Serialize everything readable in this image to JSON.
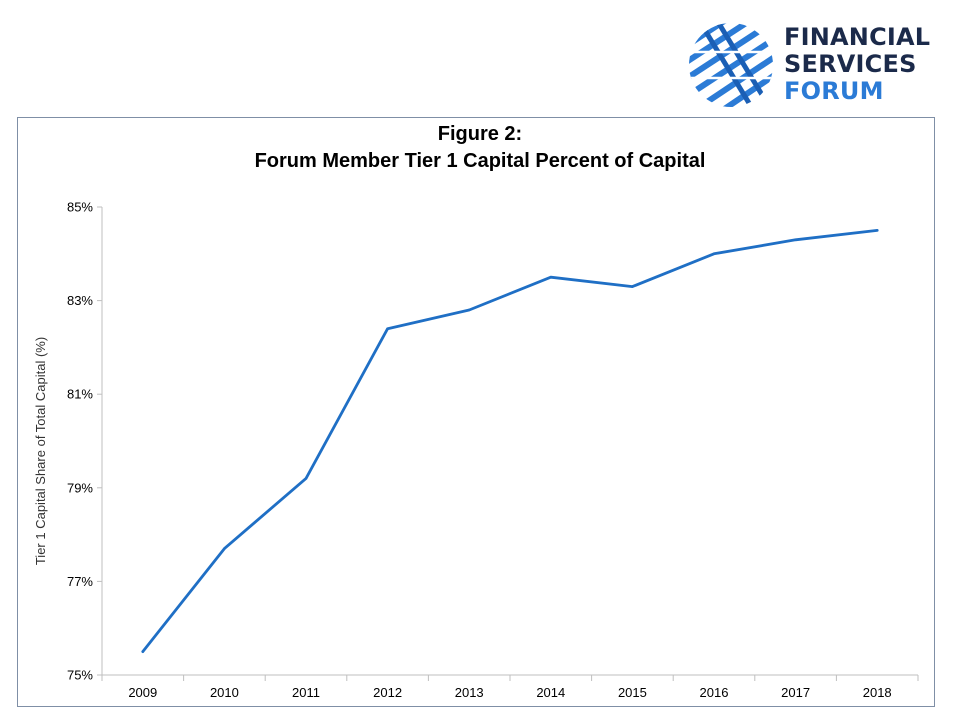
{
  "logo": {
    "line1": "FINANCIAL",
    "line2": "SERVICES",
    "line3": "FORUM",
    "mark_icon": "globe-stripes-icon",
    "colors": {
      "dark": "#1b2a4a",
      "blue": "#2b7bd6"
    }
  },
  "chart_data": {
    "type": "line",
    "title_line1": "Figure 2:",
    "title_line2": "Forum Member Tier 1 Capital Percent of Capital",
    "xlabel": "",
    "ylabel": "Tier 1 Capital Share of Total Capital (%)",
    "categories": [
      "2009",
      "2010",
      "2011",
      "2012",
      "2013",
      "2014",
      "2015",
      "2016",
      "2017",
      "2018"
    ],
    "series": [
      {
        "values": [
          75.5,
          77.7,
          79.2,
          82.4,
          82.8,
          83.5,
          83.3,
          84.0,
          84.3,
          84.5
        ],
        "color": "#1f6fc5"
      }
    ],
    "ylim": [
      75,
      85
    ],
    "yticks": [
      75,
      77,
      79,
      81,
      83,
      85
    ],
    "ytick_labels": [
      "75%",
      "77%",
      "79%",
      "81%",
      "83%",
      "85%"
    ],
    "grid": false,
    "legend": "none"
  }
}
